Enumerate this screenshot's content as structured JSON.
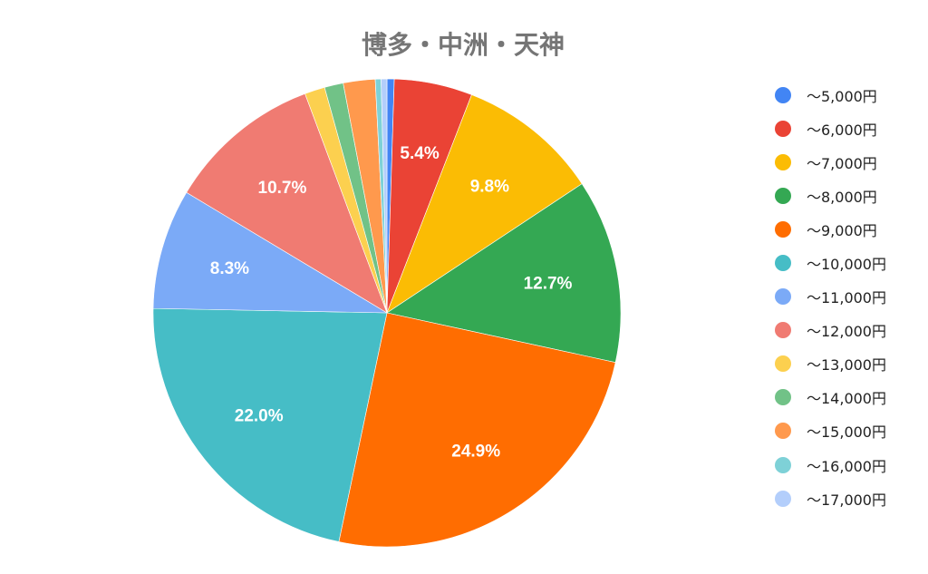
{
  "chart_data": {
    "type": "pie",
    "title": "博多・中洲・天神",
    "legend_position": "right",
    "categories": [
      "～5,000円",
      "～6,000円",
      "～7,000円",
      "～8,000円",
      "～9,000円",
      "～10,000円",
      "～11,000円",
      "～12,000円",
      "～13,000円",
      "～14,000円",
      "～15,000円",
      "～16,000円",
      "～17,000円"
    ],
    "values": [
      0.5,
      5.4,
      9.8,
      12.7,
      24.9,
      22.0,
      8.3,
      10.7,
      1.4,
      1.3,
      2.2,
      0.4,
      0.4
    ],
    "data_labels": [
      "",
      "5.4%",
      "9.8%",
      "12.7%",
      "24.9%",
      "22.0%",
      "8.3%",
      "10.7%",
      "",
      "",
      "",
      "",
      ""
    ],
    "colors": [
      "#4285f4",
      "#ea4335",
      "#fbbc04",
      "#34a853",
      "#ff6d01",
      "#46bdc6",
      "#7baaf7",
      "#f07b72",
      "#fcd04f",
      "#71c287",
      "#ff994d",
      "#7ed1d7",
      "#b3cefb"
    ]
  }
}
